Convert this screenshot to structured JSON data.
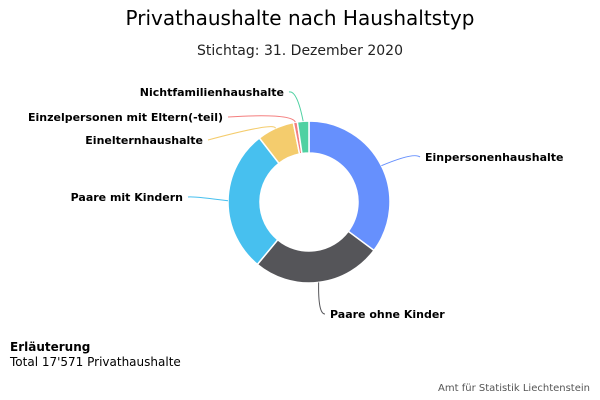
{
  "chart_data": {
    "type": "pie",
    "donut": true,
    "title": "Privathaushalte nach Haushaltstyp",
    "subtitle": "Stichtag: 31. Dezember 2020",
    "categories": [
      "Einpersonenhaushalte",
      "Paare ohne Kinder",
      "Paare mit Kindern",
      "Einelternhaushalte",
      "Einzelpersonen mit Eltern(-teil)",
      "Nichtfamilienhaushalte"
    ],
    "values": [
      35.2,
      25.8,
      28.5,
      7.4,
      0.8,
      2.3
    ],
    "colors": [
      "#6690fd",
      "#555559",
      "#47c0ef",
      "#f4cc6d",
      "#f47e7e",
      "#4fd1a2"
    ],
    "legend": "none"
  },
  "note": {
    "title": "Erläuterung",
    "text": "Total 17'571 Privathaushalte"
  },
  "credit": "Amt für Statistik Liechtenstein"
}
